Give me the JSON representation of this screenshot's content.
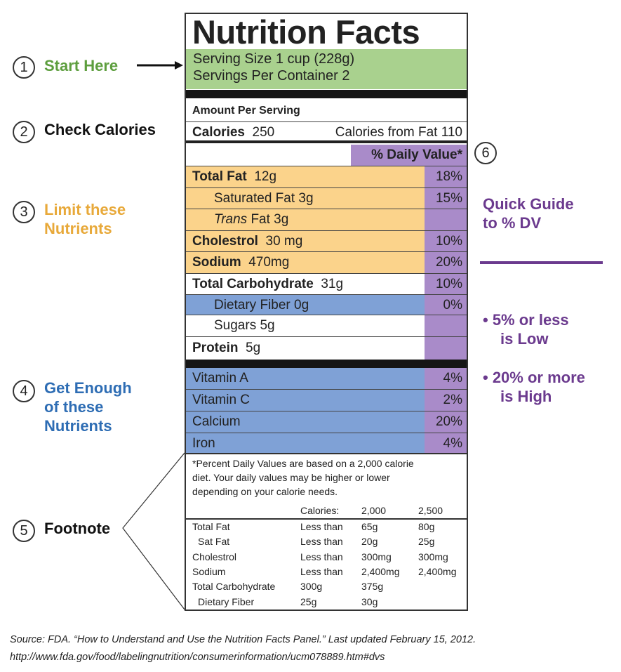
{
  "label": {
    "title": "Nutrition Facts",
    "serving_size": "Serving Size 1 cup (228g)",
    "servings_per_container": "Servings Per Container 2",
    "amount_per_serving": "Amount Per Serving",
    "calories_label": "Calories",
    "calories_value": "250",
    "calories_from_fat": "Calories from Fat 110",
    "dv_header": "% Daily Value*",
    "nutrients": [
      {
        "name": "Total Fat",
        "amount": "12g",
        "dv": "18%"
      },
      {
        "name": "Saturated Fat 3g",
        "amount": "",
        "dv": "15%"
      },
      {
        "name": "Trans",
        "amount": "Fat 3g",
        "dv": ""
      },
      {
        "name": "Cholestrol",
        "amount": "30 mg",
        "dv": "10%"
      },
      {
        "name": "Sodium",
        "amount": "470mg",
        "dv": "20%"
      },
      {
        "name": "Total Carbohydrate",
        "amount": "31g",
        "dv": "10%"
      },
      {
        "name": "Dietary Fiber 0g",
        "amount": "",
        "dv": "0%"
      },
      {
        "name": "Sugars 5g",
        "amount": "",
        "dv": ""
      },
      {
        "name": "Protein",
        "amount": "5g",
        "dv": ""
      }
    ],
    "vitamins": [
      {
        "name": "Vitamin A",
        "dv": "4%"
      },
      {
        "name": "Vitamin C",
        "dv": "2%"
      },
      {
        "name": "Calcium",
        "dv": "20%"
      },
      {
        "name": "Iron",
        "dv": "4%"
      }
    ],
    "footnote": {
      "text": [
        "*Percent Daily Values are based on a 2,000 calorie",
        "diet. Your daily values may be higher or lower",
        "depending on your calorie needs."
      ],
      "header": [
        "",
        "Calories:",
        "2,000",
        "2,500"
      ],
      "rows": [
        [
          "Total Fat",
          "Less than",
          "65g",
          "80g"
        ],
        [
          "Sat Fat",
          "Less than",
          "20g",
          "25g"
        ],
        [
          "Cholestrol",
          "Less than",
          "300mg",
          "300mg"
        ],
        [
          "Sodium",
          "Less than",
          "2,400mg",
          "2,400mg"
        ],
        [
          "Total Carbohydrate",
          "300g",
          "375g",
          ""
        ],
        [
          "Dietary Fiber",
          "25g",
          "30g",
          ""
        ]
      ]
    }
  },
  "annotations": {
    "step1": {
      "num": "1",
      "text": "Start Here"
    },
    "step2": {
      "num": "2",
      "text": "Check Calories"
    },
    "step3": {
      "num": "3",
      "line1": "Limit these",
      "line2": "Nutrients"
    },
    "step4": {
      "num": "4",
      "line1": "Get Enough",
      "line2": "of these",
      "line3": "Nutrients"
    },
    "step5": {
      "num": "5",
      "text": "Footnote"
    },
    "step6": {
      "num": "6"
    }
  },
  "guide": {
    "line1": "Quick Guide",
    "line2": "to % DV",
    "b1a": "• 5% or less",
    "b1b": "is Low",
    "b2a": "• 20% or more",
    "b2b": "is High"
  },
  "source": {
    "line1": "Source: FDA. “How to Understand and Use the Nutrition Facts Panel.” Last updated February 15, 2012.",
    "line2": "http://www.fda.gov/food/labelingnutrition/consumerinformation/ucm078889.htm#dvs"
  },
  "colors": {
    "green": "#a9d18e",
    "orange": "#fbd38b",
    "blue": "#7fa1d6",
    "purple": "#a98bc9",
    "limit_text": "#e8a93a",
    "enough_text": "#2e6db4",
    "start_text": "#5d9e3e",
    "guide_text": "#6b3a8e"
  }
}
